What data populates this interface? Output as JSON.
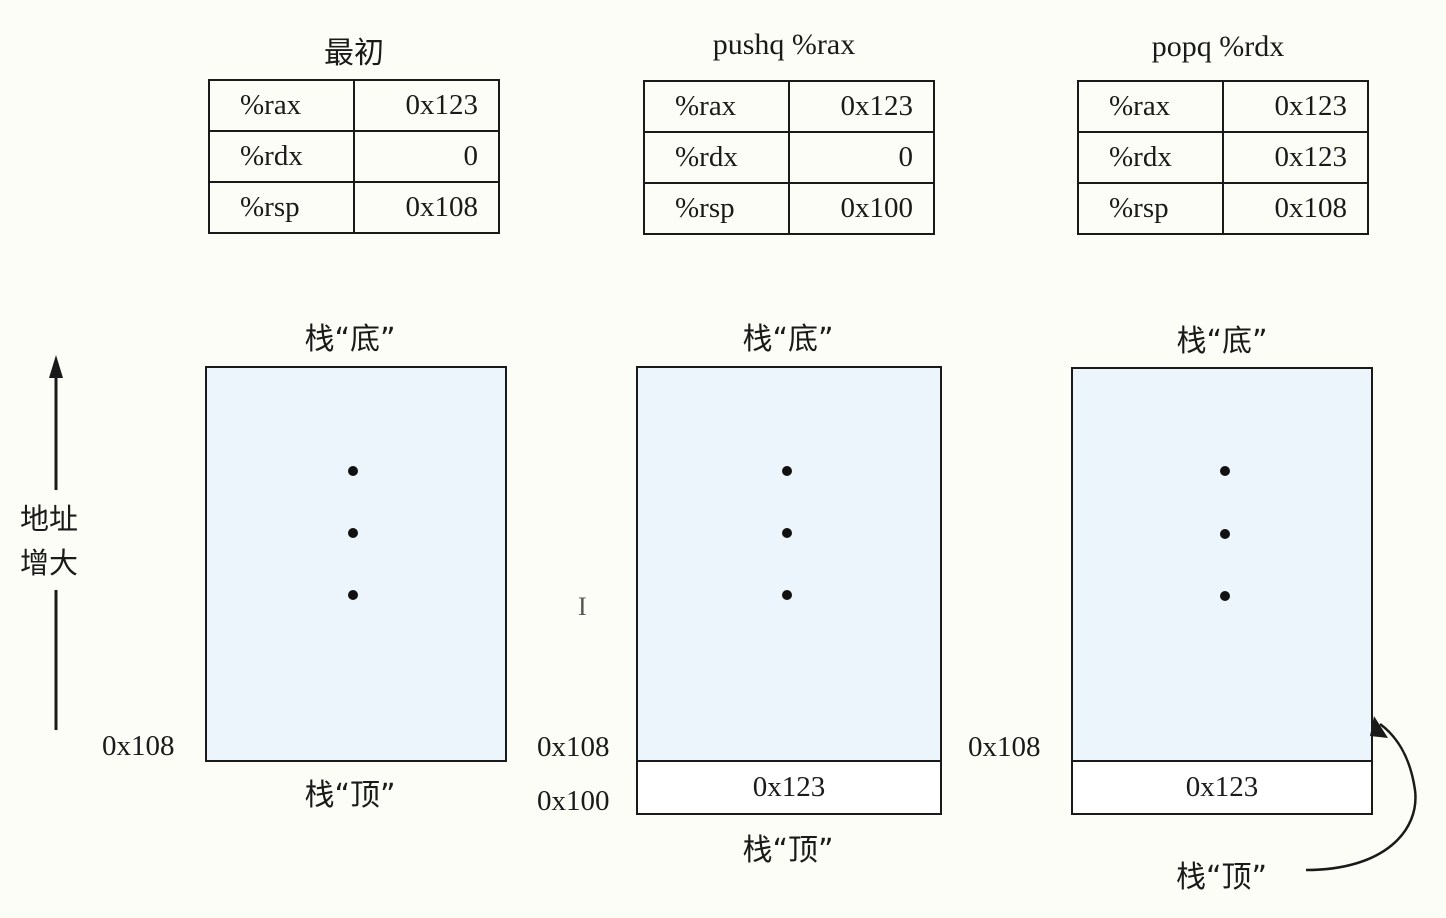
{
  "panels": [
    {
      "title": "最初",
      "registers": [
        {
          "name": "%rax",
          "value": "0x123"
        },
        {
          "name": "%rdx",
          "value": "0"
        },
        {
          "name": "%rsp",
          "value": "0x108"
        }
      ],
      "stack_bottom_label": "栈“底”",
      "stack_top_label": "栈“顶”",
      "addresses": [
        "0x108"
      ],
      "slot_value": ""
    },
    {
      "title": "pushq %rax",
      "registers": [
        {
          "name": "%rax",
          "value": "0x123"
        },
        {
          "name": "%rdx",
          "value": "0"
        },
        {
          "name": "%rsp",
          "value": "0x100"
        }
      ],
      "stack_bottom_label": "栈“底”",
      "stack_top_label": "栈“顶”",
      "addresses": [
        "0x108",
        "0x100"
      ],
      "slot_value": "0x123"
    },
    {
      "title": "popq %rdx",
      "registers": [
        {
          "name": "%rax",
          "value": "0x123"
        },
        {
          "name": "%rdx",
          "value": "0x123"
        },
        {
          "name": "%rsp",
          "value": "0x108"
        }
      ],
      "stack_bottom_label": "栈“底”",
      "stack_top_label": "栈“顶”",
      "addresses": [
        "0x108"
      ],
      "slot_value": "0x123"
    }
  ],
  "axis_label_line1": "地址",
  "axis_label_line2": "增大",
  "colors": {
    "stack_fill": "#ebf5fb",
    "line": "#1a1a1a"
  }
}
